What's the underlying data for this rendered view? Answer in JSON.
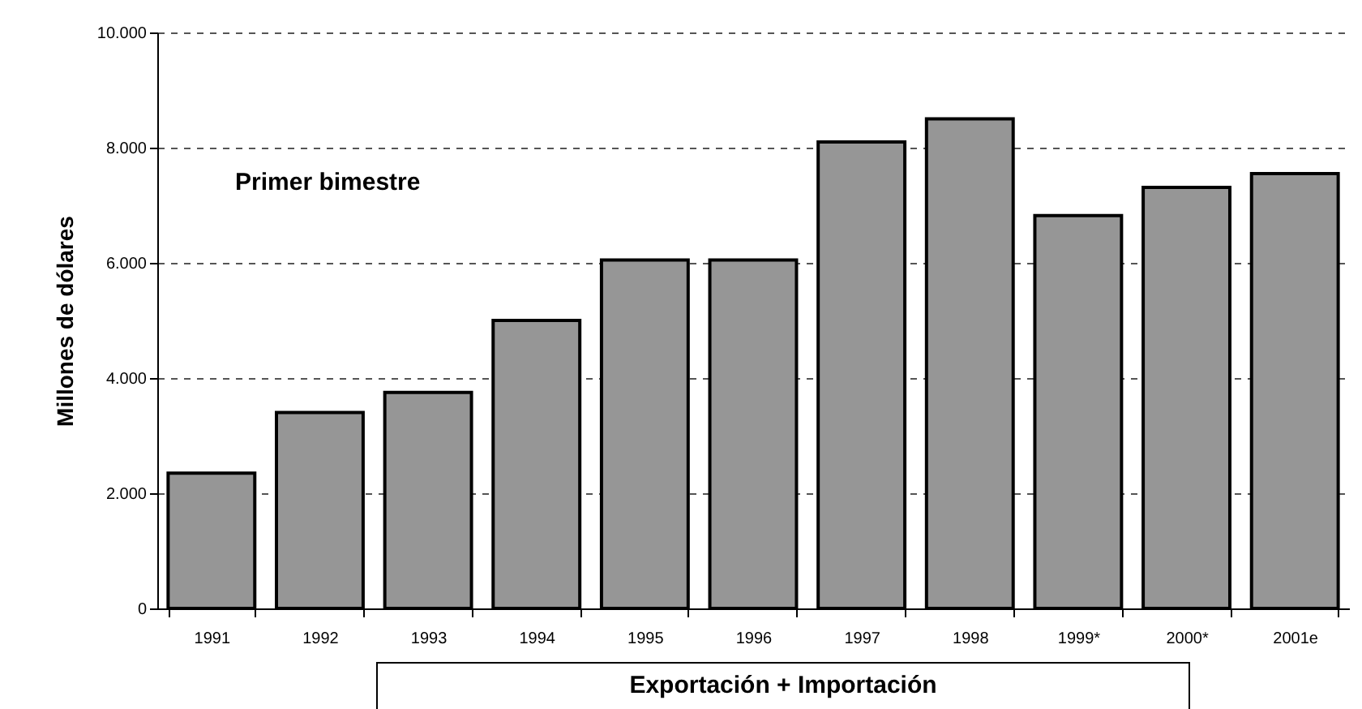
{
  "chart_data": {
    "type": "bar",
    "ylabel": "Millones de dólares",
    "xlabel": "Exportación + Importación",
    "annotations": [
      "Primer bimestre"
    ],
    "categories": [
      "1991",
      "1992",
      "1993",
      "1994",
      "1995",
      "1996",
      "1997",
      "1998",
      "1999*",
      "2000*",
      "2001e"
    ],
    "values": [
      2350,
      3400,
      3750,
      5000,
      6050,
      6050,
      8100,
      8500,
      6820,
      7310,
      7550
    ],
    "color": "#969696",
    "ylim": [
      0,
      10000
    ],
    "yticks": [
      0,
      {
        "value": 2000,
        "label": "2.000"
      },
      {
        "value": 4000,
        "label": "4.000"
      },
      {
        "value": 6000,
        "label": "6.000"
      },
      {
        "value": 8000,
        "label": "8.000"
      },
      {
        "value": 10000,
        "label": "10.000"
      }
    ],
    "grid": "y"
  }
}
